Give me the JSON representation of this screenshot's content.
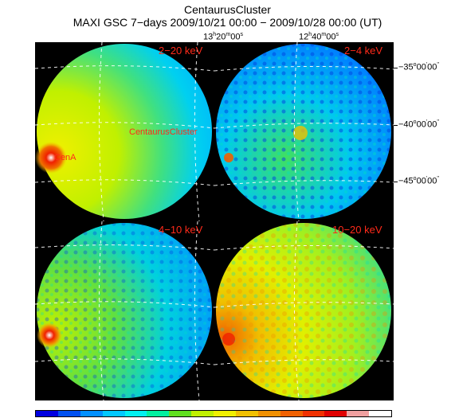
{
  "title": "CentaurusCluster",
  "subtitle": "MAXI GSC 7−days 2009/10/21 00:00 − 2009/10/28 00:00 (UT)",
  "ra_labels": [
    {
      "h": "13",
      "m": "20",
      "s": "00"
    },
    {
      "h": "12",
      "m": "40",
      "s": "00"
    }
  ],
  "dec_labels": [
    {
      "deg": "−35",
      "min": "00",
      "sec": "00"
    },
    {
      "deg": "−40",
      "min": "00",
      "sec": "00"
    },
    {
      "deg": "−45",
      "min": "00",
      "sec": "00"
    }
  ],
  "panels": [
    {
      "band": "2−20 keV",
      "labels": [
        "CentaurusCluster",
        "CenA"
      ]
    },
    {
      "band": "2−4 keV"
    },
    {
      "band": "4−10 keV"
    },
    {
      "band": "10−20 keV"
    }
  ],
  "colorbar": [
    "#0000e0",
    "#0050f0",
    "#0090ff",
    "#00c8ff",
    "#00f0f0",
    "#00f0a0",
    "#60e020",
    "#c0f000",
    "#f0f000",
    "#f0c000",
    "#f09000",
    "#f06000",
    "#f03000",
    "#e00000",
    "#f0a0a0",
    "#ffffff"
  ]
}
